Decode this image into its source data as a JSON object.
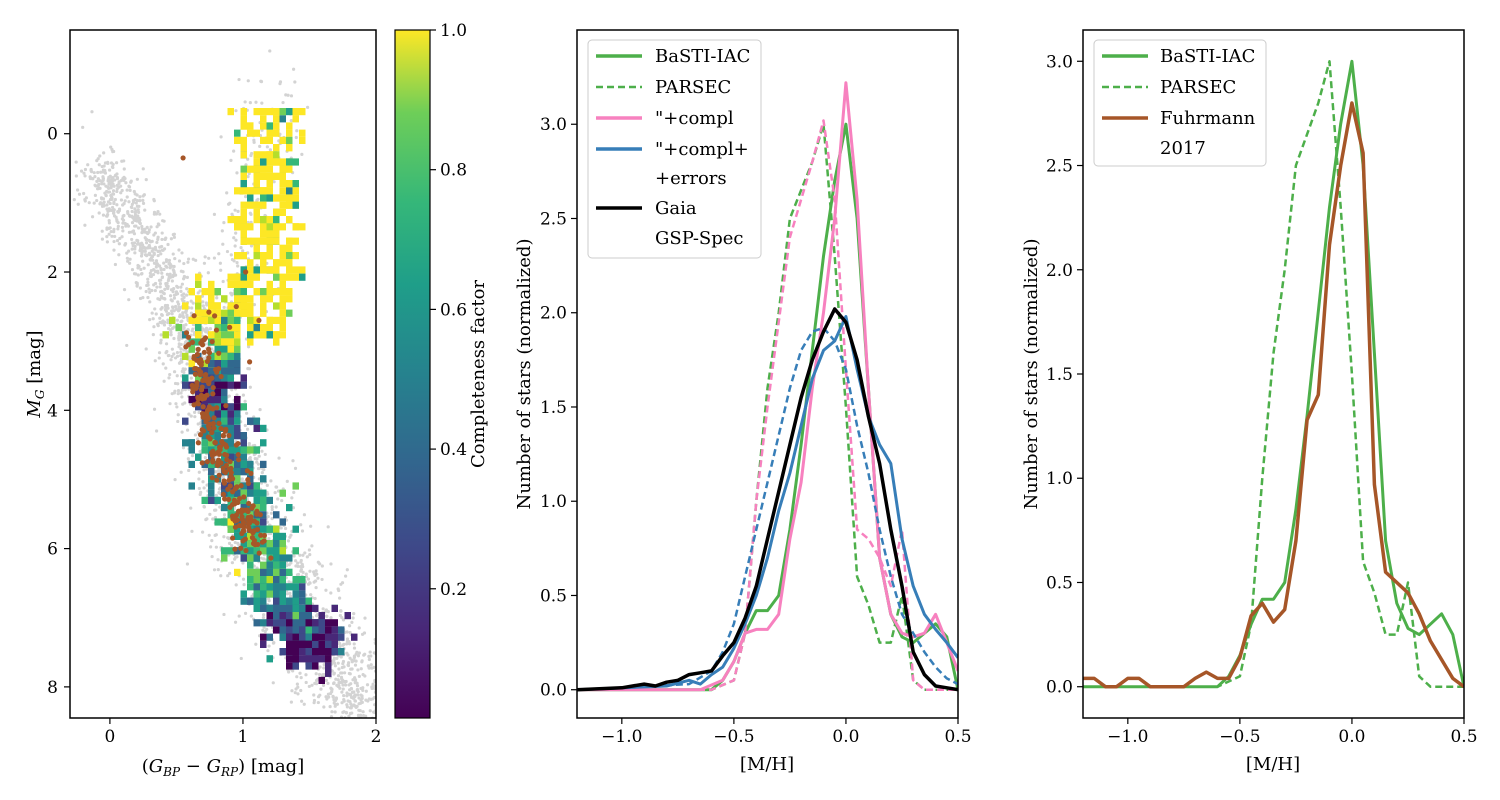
{
  "colors": {
    "basti": "#4daf4a",
    "parsec": "#4daf4a",
    "compl": "#f781bf",
    "compl_err": "#377eb8",
    "gaia": "#000000",
    "fuhrmann": "#a65628",
    "background_stars": "#d3d3d3"
  },
  "chart_data": [
    {
      "type": "scatter",
      "xlabel": "(G_BP − G_RP) [mag]",
      "ylabel": "M_G [mag]",
      "xlim": [
        -0.3,
        2.0
      ],
      "ylim": [
        8.45,
        -1.5
      ],
      "x_ticks": [
        "0",
        "1",
        "2"
      ],
      "y_ticks": [
        "0",
        "2",
        "4",
        "6",
        "8"
      ],
      "colorbar": {
        "label": "Completeness factor",
        "range": [
          0.0,
          1.0
        ],
        "ticks": [
          "0.2",
          "0.4",
          "0.6",
          "0.8",
          "1.0"
        ]
      },
      "background_sequence": {
        "description": "gray field stars",
        "main_sequence": [
          [
            -0.1,
            0.5
          ],
          [
            0.2,
            1.4
          ],
          [
            0.5,
            2.4
          ],
          [
            0.7,
            3.4
          ],
          [
            0.85,
            4.5
          ],
          [
            1.0,
            5.3
          ],
          [
            1.2,
            6.2
          ],
          [
            1.45,
            7.0
          ],
          [
            1.75,
            7.8
          ],
          [
            2.0,
            8.4
          ]
        ],
        "red_giant_branch": [
          [
            0.75,
            3.4
          ],
          [
            0.85,
            2.6
          ],
          [
            0.95,
            1.8
          ],
          [
            1.05,
            1.0
          ],
          [
            1.15,
            0.2
          ],
          [
            1.25,
            -0.6
          ]
        ]
      },
      "completeness_map": {
        "sequence": [
          [
            0.75,
            2.2,
            1.0
          ],
          [
            0.8,
            3.0,
            0.9
          ],
          [
            0.75,
            3.6,
            0.05
          ],
          [
            0.82,
            4.2,
            0.4
          ],
          [
            0.9,
            4.8,
            0.5
          ],
          [
            1.0,
            5.4,
            0.6
          ],
          [
            1.1,
            6.0,
            0.65
          ],
          [
            1.2,
            6.5,
            0.55
          ],
          [
            1.3,
            6.9,
            0.4
          ],
          [
            1.45,
            7.2,
            0.1
          ],
          [
            1.55,
            7.5,
            0.02
          ]
        ]
      },
      "highlighted_stars": {
        "description": "Fuhrmann 2017 sample (brown points)",
        "sequence": [
          [
            0.55,
            0.35
          ],
          [
            0.45,
            2.6
          ],
          [
            0.65,
            3.0
          ],
          [
            0.7,
            3.5
          ],
          [
            0.75,
            4.0
          ],
          [
            0.8,
            4.5
          ],
          [
            0.85,
            4.9
          ],
          [
            0.95,
            5.3
          ],
          [
            1.05,
            5.7
          ],
          [
            1.15,
            6.0
          ],
          [
            0.95,
            2.5
          ],
          [
            1.0,
            2.0
          ]
        ]
      }
    },
    {
      "type": "line",
      "xlabel": "[M/H]",
      "ylabel": "Number of stars (normalized)",
      "xlim": [
        -1.2,
        0.5
      ],
      "ylim": [
        -0.15,
        3.5
      ],
      "x_ticks": [
        "−1.0",
        "−0.5",
        "0.0",
        "0.5"
      ],
      "x_tick_values": [
        -1.0,
        -0.5,
        0.0,
        0.5
      ],
      "y_ticks": [
        "0.0",
        "0.5",
        "1.0",
        "1.5",
        "2.0",
        "2.5",
        "3.0"
      ],
      "y_tick_values": [
        0.0,
        0.5,
        1.0,
        1.5,
        2.0,
        2.5,
        3.0
      ],
      "legend": [
        "BaSTI-IAC",
        "PARSEC",
        "\"+compl",
        "\"+compl+",
        "+errors",
        "Gaia",
        "GSP-Spec"
      ],
      "series": [
        {
          "name": "BaSTI-IAC",
          "color_key": "basti",
          "style": "solid",
          "width": 3,
          "x": [
            -1.2,
            -0.6,
            -0.55,
            -0.5,
            -0.45,
            -0.4,
            -0.35,
            -0.3,
            -0.25,
            -0.2,
            -0.15,
            -0.1,
            -0.05,
            0.0,
            0.05,
            0.1,
            0.15,
            0.2,
            0.25,
            0.3,
            0.35,
            0.4,
            0.45,
            0.5
          ],
          "y": [
            0.0,
            0.0,
            0.05,
            0.15,
            0.3,
            0.42,
            0.42,
            0.5,
            0.85,
            1.3,
            1.8,
            2.3,
            2.7,
            3.0,
            2.5,
            1.6,
            0.7,
            0.4,
            0.28,
            0.25,
            0.3,
            0.35,
            0.28,
            0.0
          ]
        },
        {
          "name": "PARSEC",
          "color_key": "parsec",
          "style": "dashed",
          "width": 2.5,
          "x": [
            -1.2,
            -0.6,
            -0.5,
            -0.45,
            -0.4,
            -0.35,
            -0.3,
            -0.25,
            -0.2,
            -0.15,
            -0.1,
            -0.05,
            0.0,
            0.05,
            0.1,
            0.15,
            0.2,
            0.25,
            0.3,
            0.35,
            0.4,
            0.45,
            0.5
          ],
          "y": [
            0.0,
            0.0,
            0.05,
            0.3,
            1.0,
            1.6,
            2.0,
            2.5,
            2.65,
            2.8,
            3.0,
            2.3,
            1.5,
            0.6,
            0.45,
            0.25,
            0.25,
            0.5,
            0.05,
            0.0,
            0.0,
            0.0,
            0.0
          ]
        },
        {
          "name": "\"+compl",
          "color_key": "compl",
          "style": "solid",
          "width": 3,
          "x": [
            -1.2,
            -0.65,
            -0.55,
            -0.5,
            -0.45,
            -0.4,
            -0.35,
            -0.3,
            -0.25,
            -0.2,
            -0.15,
            -0.1,
            -0.05,
            0.0,
            0.05,
            0.1,
            0.15,
            0.2,
            0.25,
            0.3,
            0.35,
            0.4,
            0.45,
            0.5
          ],
          "y": [
            0.0,
            0.0,
            0.05,
            0.15,
            0.3,
            0.32,
            0.32,
            0.4,
            0.8,
            1.1,
            1.6,
            2.0,
            2.5,
            3.22,
            2.6,
            1.6,
            0.7,
            0.4,
            0.3,
            0.28,
            0.3,
            0.4,
            0.25,
            0.1
          ]
        },
        {
          "name": "\"+compl (dashed)",
          "color_key": "compl",
          "style": "dashed",
          "width": 2.5,
          "x": [
            -1.2,
            -0.6,
            -0.5,
            -0.45,
            -0.4,
            -0.35,
            -0.3,
            -0.25,
            -0.2,
            -0.15,
            -0.1,
            -0.05,
            0.0,
            0.05,
            0.1,
            0.15,
            0.2,
            0.25,
            0.3,
            0.35,
            0.4,
            0.45,
            0.5
          ],
          "y": [
            0.0,
            0.0,
            0.05,
            0.3,
            1.0,
            1.5,
            1.95,
            2.4,
            2.6,
            2.8,
            3.02,
            2.6,
            1.7,
            0.85,
            0.8,
            0.7,
            0.55,
            0.85,
            0.05,
            0.0,
            0.0,
            0.0,
            0.0
          ]
        },
        {
          "name": "\"+compl+ +errors",
          "color_key": "compl_err",
          "style": "solid",
          "width": 3,
          "x": [
            -1.2,
            -0.8,
            -0.7,
            -0.65,
            -0.6,
            -0.55,
            -0.5,
            -0.45,
            -0.4,
            -0.35,
            -0.3,
            -0.25,
            -0.2,
            -0.15,
            -0.1,
            -0.05,
            0.0,
            0.05,
            0.1,
            0.15,
            0.2,
            0.25,
            0.3,
            0.35,
            0.4,
            0.45,
            0.5
          ],
          "y": [
            0.0,
            0.02,
            0.05,
            0.03,
            0.08,
            0.12,
            0.22,
            0.35,
            0.5,
            0.7,
            0.95,
            1.15,
            1.4,
            1.65,
            1.8,
            1.85,
            1.98,
            1.7,
            1.45,
            1.3,
            1.2,
            0.8,
            0.55,
            0.4,
            0.32,
            0.25,
            0.17
          ]
        },
        {
          "name": "\"+compl+ +errors (dashed)",
          "color_key": "compl_err",
          "style": "dashed",
          "width": 2.5,
          "x": [
            -1.2,
            -0.7,
            -0.6,
            -0.55,
            -0.5,
            -0.45,
            -0.4,
            -0.35,
            -0.3,
            -0.25,
            -0.2,
            -0.15,
            -0.1,
            -0.05,
            0.0,
            0.05,
            0.1,
            0.15,
            0.2,
            0.25,
            0.3,
            0.35,
            0.4,
            0.45,
            0.5
          ],
          "y": [
            0.0,
            0.03,
            0.1,
            0.2,
            0.35,
            0.6,
            0.85,
            1.1,
            1.35,
            1.6,
            1.8,
            1.9,
            1.92,
            1.85,
            1.7,
            1.4,
            1.15,
            0.85,
            0.6,
            0.4,
            0.3,
            0.2,
            0.12,
            0.06,
            0.03
          ]
        },
        {
          "name": "Gaia GSP-Spec",
          "color_key": "gaia",
          "style": "solid",
          "width": 3.5,
          "x": [
            -1.2,
            -1.0,
            -0.9,
            -0.85,
            -0.8,
            -0.75,
            -0.7,
            -0.65,
            -0.6,
            -0.55,
            -0.5,
            -0.45,
            -0.4,
            -0.35,
            -0.3,
            -0.25,
            -0.2,
            -0.15,
            -0.1,
            -0.05,
            0.0,
            0.05,
            0.1,
            0.15,
            0.2,
            0.25,
            0.3,
            0.35,
            0.4,
            0.45,
            0.5
          ],
          "y": [
            0.0,
            0.01,
            0.03,
            0.02,
            0.04,
            0.05,
            0.08,
            0.09,
            0.1,
            0.18,
            0.25,
            0.38,
            0.55,
            0.8,
            1.05,
            1.3,
            1.55,
            1.75,
            1.9,
            2.02,
            1.95,
            1.75,
            1.45,
            1.2,
            0.85,
            0.55,
            0.2,
            0.08,
            0.02,
            0.01,
            0.0
          ]
        }
      ]
    },
    {
      "type": "line",
      "xlabel": "[M/H]",
      "ylabel": "Number of stars (normalized)",
      "xlim": [
        -1.2,
        0.5
      ],
      "ylim": [
        -0.15,
        3.15
      ],
      "x_ticks": [
        "−1.0",
        "−0.5",
        "0.0",
        "0.5"
      ],
      "x_tick_values": [
        -1.0,
        -0.5,
        0.0,
        0.5
      ],
      "y_ticks": [
        "0.0",
        "0.5",
        "1.0",
        "1.5",
        "2.0",
        "2.5",
        "3.0"
      ],
      "y_tick_values": [
        0.0,
        0.5,
        1.0,
        1.5,
        2.0,
        2.5,
        3.0
      ],
      "legend": [
        "BaSTI-IAC",
        "PARSEC",
        "Fuhrmann",
        "2017"
      ],
      "series": [
        {
          "name": "BaSTI-IAC",
          "color_key": "basti",
          "style": "solid",
          "width": 3,
          "x": [
            -1.2,
            -0.6,
            -0.55,
            -0.5,
            -0.45,
            -0.4,
            -0.35,
            -0.3,
            -0.25,
            -0.2,
            -0.15,
            -0.1,
            -0.05,
            0.0,
            0.05,
            0.1,
            0.15,
            0.2,
            0.25,
            0.3,
            0.35,
            0.4,
            0.45,
            0.5
          ],
          "y": [
            0.0,
            0.0,
            0.05,
            0.15,
            0.3,
            0.42,
            0.42,
            0.5,
            0.85,
            1.3,
            1.8,
            2.3,
            2.7,
            3.0,
            2.5,
            1.6,
            0.7,
            0.4,
            0.28,
            0.25,
            0.3,
            0.35,
            0.25,
            0.0
          ]
        },
        {
          "name": "PARSEC",
          "color_key": "parsec",
          "style": "dashed",
          "width": 2.5,
          "x": [
            -1.2,
            -0.6,
            -0.5,
            -0.45,
            -0.4,
            -0.35,
            -0.3,
            -0.25,
            -0.2,
            -0.15,
            -0.1,
            -0.05,
            0.0,
            0.05,
            0.1,
            0.15,
            0.2,
            0.25,
            0.3,
            0.35,
            0.4,
            0.45,
            0.5
          ],
          "y": [
            0.0,
            0.0,
            0.05,
            0.3,
            1.0,
            1.6,
            2.0,
            2.5,
            2.65,
            2.8,
            3.0,
            2.3,
            1.5,
            0.6,
            0.45,
            0.25,
            0.25,
            0.5,
            0.05,
            0.0,
            0.0,
            0.0,
            0.0
          ]
        },
        {
          "name": "Fuhrmann 2017",
          "color_key": "fuhrmann",
          "style": "solid",
          "width": 3.5,
          "x": [
            -1.2,
            -1.15,
            -1.1,
            -1.05,
            -1.0,
            -0.95,
            -0.9,
            -0.85,
            -0.8,
            -0.75,
            -0.7,
            -0.65,
            -0.6,
            -0.55,
            -0.5,
            -0.45,
            -0.4,
            -0.35,
            -0.3,
            -0.25,
            -0.2,
            -0.15,
            -0.1,
            -0.05,
            0.0,
            0.05,
            0.1,
            0.15,
            0.2,
            0.25,
            0.3,
            0.35,
            0.4,
            0.45,
            0.5
          ],
          "y": [
            0.04,
            0.04,
            0.0,
            0.0,
            0.04,
            0.04,
            0.0,
            0.0,
            0.0,
            0.0,
            0.04,
            0.07,
            0.04,
            0.04,
            0.14,
            0.34,
            0.4,
            0.31,
            0.37,
            0.7,
            1.28,
            1.4,
            2.12,
            2.5,
            2.8,
            2.56,
            0.97,
            0.55,
            0.5,
            0.45,
            0.35,
            0.22,
            0.13,
            0.04,
            0.0
          ]
        }
      ]
    }
  ]
}
